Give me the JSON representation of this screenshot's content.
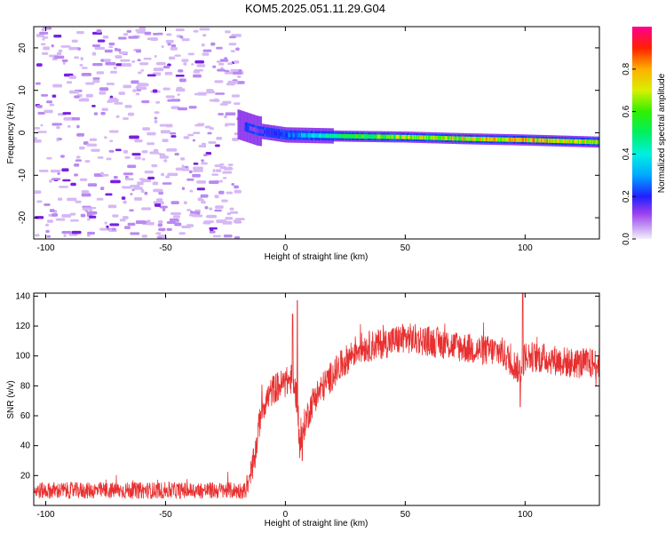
{
  "title": "KOM5.2025.051.11.29.G04",
  "colors": {
    "snr_line": "#e83030",
    "scatter_light": "#d6b8f5",
    "scatter_mid": "#b98af0",
    "scatter_dark": "#7a20e0",
    "frame": "#000000"
  },
  "chart_data": [
    {
      "type": "heatmap",
      "xlabel": "Height of straight line (km)",
      "ylabel": "Frequency (Hz)",
      "xlim": [
        -105,
        131
      ],
      "ylim": [
        -25,
        25
      ],
      "x_ticks": [
        -100,
        -50,
        0,
        50,
        100
      ],
      "y_ticks": [
        -20,
        -10,
        0,
        10,
        20
      ],
      "colorbar": {
        "label": "Normalized spectral amplitude",
        "range": [
          0,
          1
        ],
        "ticks": [
          0.0,
          0.2,
          0.4,
          0.6,
          0.8
        ],
        "colormap": "rainbow (purple-blue-cyan-green-yellow-red-magenta)"
      },
      "features": {
        "noise_region_x": [
          -105,
          -20
        ],
        "noise_amplitude": 0.05,
        "signal_trace": [
          {
            "x": -20,
            "freq": 2.0,
            "amp": 0.05
          },
          {
            "x": -12,
            "freq": 0.5,
            "amp": 0.15
          },
          {
            "x": 0,
            "freq": -0.5,
            "amp": 0.25
          },
          {
            "x": 25,
            "freq": -0.8,
            "amp": 0.55
          },
          {
            "x": 50,
            "freq": -1.0,
            "amp": 0.7
          },
          {
            "x": 75,
            "freq": -1.4,
            "amp": 0.75
          },
          {
            "x": 100,
            "freq": -1.7,
            "amp": 0.8
          },
          {
            "x": 131,
            "freq": -2.2,
            "amp": 0.75
          }
        ]
      }
    },
    {
      "type": "line",
      "xlabel": "Height of straight line (km)",
      "ylabel": "SNR (v/v)",
      "xlim": [
        -105,
        131
      ],
      "ylim": [
        0,
        142
      ],
      "x_ticks": [
        -100,
        -50,
        0,
        50,
        100
      ],
      "y_ticks": [
        20,
        40,
        60,
        80,
        100,
        120,
        140
      ],
      "series": [
        {
          "envelope_x": [
            -105,
            -60,
            -30,
            -16,
            -13,
            -10,
            -5,
            0,
            3,
            5,
            6,
            8,
            12,
            20,
            30,
            40,
            50,
            60,
            70,
            80,
            90,
            98,
            100,
            110,
            120,
            131
          ],
          "envelope_mean": [
            10,
            10,
            10,
            10,
            30,
            65,
            78,
            82,
            85,
            70,
            38,
            55,
            72,
            88,
            105,
            108,
            112,
            110,
            107,
            104,
            103,
            90,
            100,
            98,
            95,
            95
          ],
          "noise_spread": 8,
          "spikes": [
            {
              "x": -16,
              "y": 20
            },
            {
              "x": 3,
              "y": 128
            },
            {
              "x": 5,
              "y": 137
            },
            {
              "x": 7,
              "y": 30
            },
            {
              "x": 98,
              "y": 66
            },
            {
              "x": 99,
              "y": 142
            }
          ]
        }
      ]
    }
  ]
}
